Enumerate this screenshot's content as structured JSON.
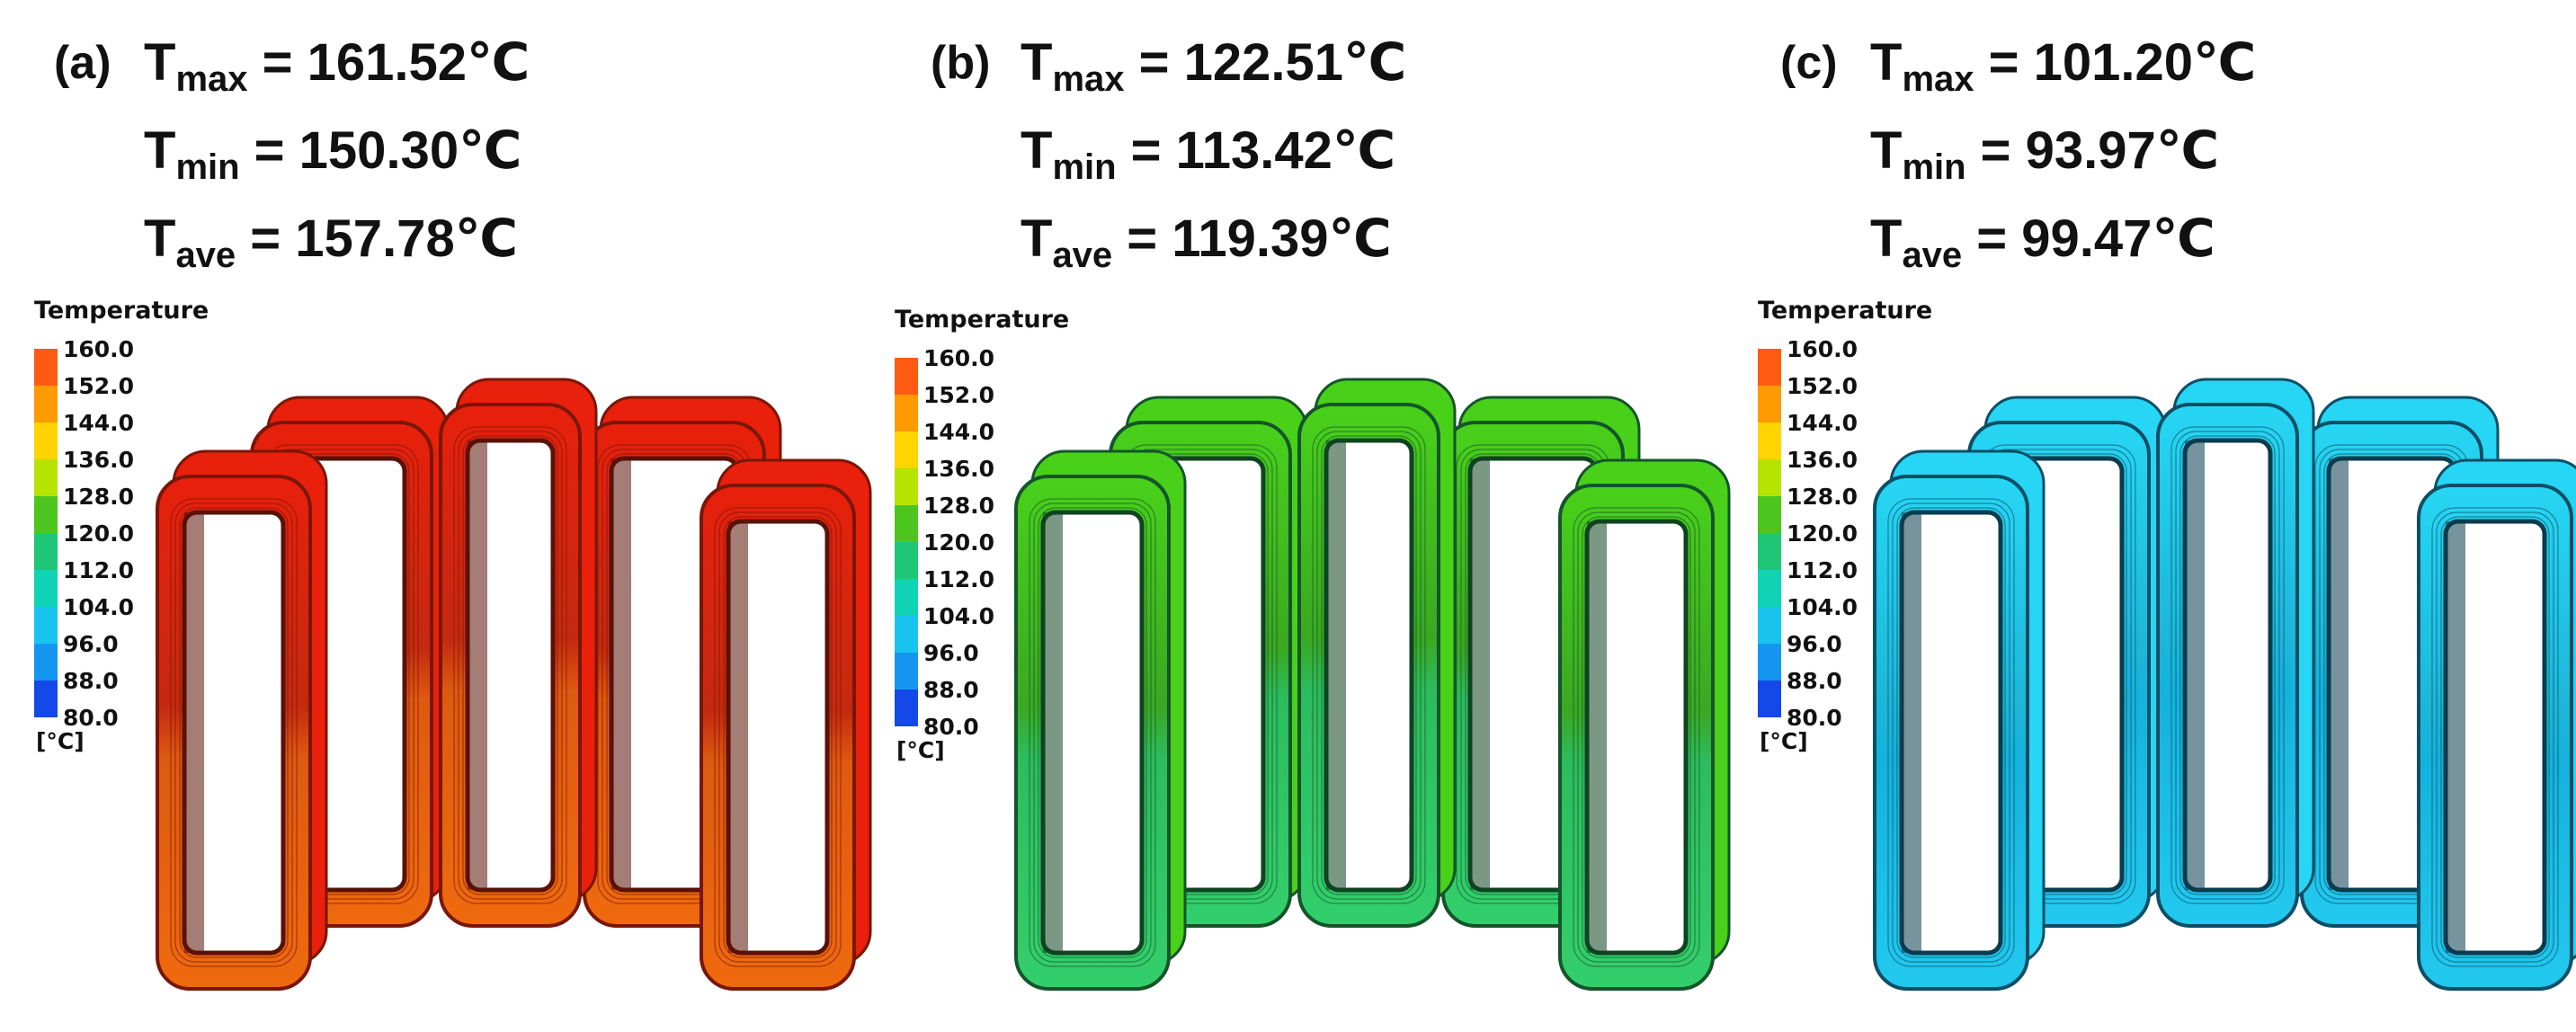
{
  "legend": {
    "title": "Temperature",
    "unit": "[°C]",
    "ticks": [
      "160.0",
      "152.0",
      "144.0",
      "136.0",
      "128.0",
      "120.0",
      "112.0",
      "104.0",
      "96.0",
      "88.0",
      "80.0"
    ],
    "colors": [
      "#ff5a12",
      "#ff9a00",
      "#ffd400",
      "#b7e300",
      "#4cc61f",
      "#1ec776",
      "#10d3b6",
      "#18c4ee",
      "#1496f0",
      "#1448e8"
    ]
  },
  "panels": [
    {
      "id": "a",
      "tag": "(a)",
      "tmax_label": "T",
      "tmax_sub": "max",
      "tmax": "161.52℃",
      "tmin_label": "T",
      "tmin_sub": "min",
      "tmin": "150.30℃",
      "tave_label": "T",
      "tave_sub": "ave",
      "tave": "157.78℃",
      "palette": {
        "top": "#e8200c",
        "upper": "#c42a10",
        "lower": "#de5a10",
        "low2": "#ef6a0e",
        "dark": "#7a1606",
        "inner": "#5a1206"
      }
    },
    {
      "id": "b",
      "tag": "(b)",
      "tmax_label": "T",
      "tmax_sub": "max",
      "tmax": "122.51℃",
      "tmin_label": "T",
      "tmin_sub": "min",
      "tmin": "113.42℃",
      "tave_label": "T",
      "tave_sub": "ave",
      "tave": "119.39℃",
      "palette": {
        "top": "#49d11a",
        "upper": "#3aa822",
        "lower": "#2cbc5e",
        "low2": "#33cf6c",
        "dark": "#14552a",
        "inner": "#0f4420"
      }
    },
    {
      "id": "c",
      "tag": "(c)",
      "tmax_label": "T",
      "tmax_sub": "max",
      "tmax": "101.20℃",
      "tmin_label": "T",
      "tmin_sub": "min",
      "tmin": "93.97℃",
      "tave_label": "T",
      "tave_sub": "ave",
      "tave": "99.47℃",
      "palette": {
        "top": "#27d6f4",
        "upper": "#1cb6d8",
        "lower": "#14b2dc",
        "low2": "#23c9ef",
        "dark": "#0b4f66",
        "inner": "#083c4e"
      }
    }
  ]
}
